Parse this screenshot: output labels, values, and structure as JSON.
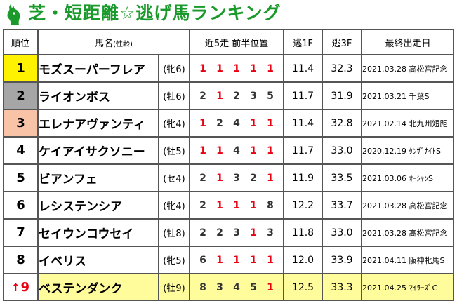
{
  "title": "芝・短距離☆逃げ馬ランキング",
  "colors": {
    "title_green": "#1a9a2a",
    "rank1": "#fff200",
    "rank2": "#a6a6a6",
    "rank3": "#f8c3a6",
    "highlight_row": "#fffc9c",
    "red": "#e60012"
  },
  "header": {
    "rank": "順位",
    "horse": "馬名",
    "horse_sub": "(性齢)",
    "recent": "近5走 前半位置",
    "f1": "逃1F",
    "f3": "逃3F",
    "last": "最終出走日"
  },
  "rows": [
    {
      "rank": "1",
      "arrow": "",
      "name": "モズスーパーフレア",
      "sex": "(牝6)",
      "recent": [
        "1",
        "1",
        "1",
        "1",
        "1"
      ],
      "f1": "11.4",
      "f3": "32.3",
      "date": "2021.03.28",
      "race": "高松宮記念"
    },
    {
      "rank": "2",
      "arrow": "",
      "name": "ライオンボス",
      "sex": "(牡6)",
      "recent": [
        "2",
        "1",
        "2",
        "3",
        "5"
      ],
      "f1": "11.7",
      "f3": "31.9",
      "date": "2021.03.21",
      "race": "千葉S"
    },
    {
      "rank": "3",
      "arrow": "",
      "name": "エレナアヴァンティ",
      "sex": "(牝4)",
      "recent": [
        "1",
        "2",
        "4",
        "1",
        "1"
      ],
      "f1": "11.4",
      "f3": "32.8",
      "date": "2021.02.14",
      "race": "北九州短距"
    },
    {
      "rank": "4",
      "arrow": "",
      "name": "ケイアイサクソニー",
      "sex": "(牡5)",
      "recent": [
        "1",
        "1",
        "4",
        "1",
        "1"
      ],
      "f1": "11.7",
      "f3": "33.0",
      "date": "2020.12.19",
      "race": "ﾀﾝｻﾞﾅｲﾄS"
    },
    {
      "rank": "5",
      "arrow": "",
      "name": "ビアンフェ",
      "sex": "(セ4)",
      "recent": [
        "2",
        "1",
        "3",
        "2",
        "1"
      ],
      "f1": "11.9",
      "f3": "33.5",
      "date": "2021.03.06",
      "race": "ｵｰｼｬﾝS"
    },
    {
      "rank": "6",
      "arrow": "",
      "name": "レシステンシア",
      "sex": "(牝4)",
      "recent": [
        "2",
        "1",
        "1",
        "1",
        "8"
      ],
      "f1": "12.2",
      "f3": "33.7",
      "date": "2021.03.28",
      "race": "高松宮記念"
    },
    {
      "rank": "7",
      "arrow": "",
      "name": "セイウンコウセイ",
      "sex": "(牡8)",
      "recent": [
        "2",
        "2",
        "3",
        "1",
        "3"
      ],
      "f1": "11.8",
      "f3": "33.0",
      "date": "2021.03.28",
      "race": "高松宮記念"
    },
    {
      "rank": "8",
      "arrow": "",
      "name": "イベリス",
      "sex": "(牝5)",
      "recent": [
        "6",
        "1",
        "1",
        "1",
        "1"
      ],
      "f1": "12.0",
      "f3": "33.9",
      "date": "2021.04.11",
      "race": "阪神牝馬S"
    },
    {
      "rank": "9",
      "arrow": "↑",
      "name": "ベステンダンク",
      "sex": "(牡9)",
      "recent": [
        "8",
        "3",
        "4",
        "5",
        "1"
      ],
      "f1": "12.5",
      "f3": "33.3",
      "date": "2021.04.25",
      "race": "ﾏｲﾗｰｽﾞC"
    }
  ]
}
